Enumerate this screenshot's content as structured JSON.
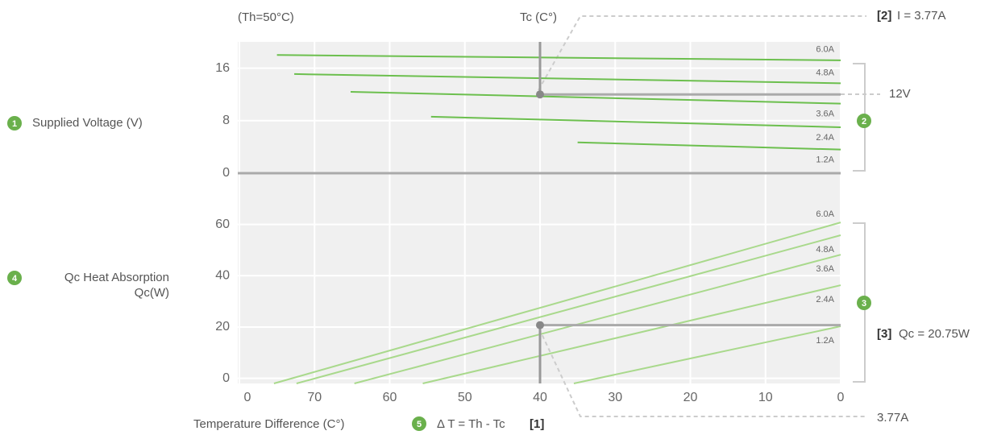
{
  "chart_data": [
    {
      "type": "line",
      "ylabel": "Supplied Voltage (V)",
      "badge": "1",
      "side_badge": "2",
      "xlim": [
        80,
        0
      ],
      "ylim": [
        0,
        20
      ],
      "yticks": [
        0,
        8,
        16
      ],
      "grid": true,
      "color": "#6cbf4e",
      "series": [
        {
          "name": "6.0A",
          "x": [
            75,
            0
          ],
          "values": [
            18.0,
            17.2
          ]
        },
        {
          "name": "4.8A",
          "x": [
            72.7,
            0
          ],
          "values": [
            15.1,
            13.7
          ]
        },
        {
          "name": "3.6A",
          "x": [
            65.2,
            0
          ],
          "values": [
            12.4,
            10.6
          ]
        },
        {
          "name": "2.4A",
          "x": [
            54.5,
            0
          ],
          "values": [
            8.6,
            7.0
          ]
        },
        {
          "name": "1.2A",
          "x": [
            35,
            0
          ],
          "values": [
            4.7,
            3.6
          ]
        }
      ],
      "operating_point": {
        "x": 40,
        "y": 12,
        "label": "12V"
      }
    },
    {
      "type": "line",
      "ylabel": [
        "Qc Heat Absorption",
        "Qc(W)"
      ],
      "badge": "4",
      "side_badge": "3",
      "xlabel": "Temperature Difference (C°)",
      "xlim": [
        80,
        0
      ],
      "xticks": [
        {
          "value": 80,
          "label": "0"
        },
        70,
        60,
        50,
        40,
        30,
        20,
        10,
        0
      ],
      "ylim": [
        -2,
        69
      ],
      "yticks": [
        0,
        20,
        40,
        60
      ],
      "grid": true,
      "color": "#a9d98c",
      "series": [
        {
          "name": "6.0A",
          "x": [
            75.4,
            0
          ],
          "values": [
            -2,
            60.8
          ]
        },
        {
          "name": "4.8A",
          "x": [
            72.4,
            0
          ],
          "values": [
            -2,
            55.8
          ]
        },
        {
          "name": "3.6A",
          "x": [
            64.7,
            0
          ],
          "values": [
            -2,
            48.2
          ]
        },
        {
          "name": "2.4A",
          "x": [
            55.6,
            0
          ],
          "values": [
            -2,
            36.3
          ]
        },
        {
          "name": "1.2A",
          "x": [
            35.5,
            0
          ],
          "values": [
            -2,
            20.3
          ]
        }
      ],
      "operating_point": {
        "x": 40,
        "y": 20.75
      }
    }
  ],
  "annotations": {
    "th": "(Th=50°C)",
    "tc": "Tc (C°)",
    "current_ref": "[2]",
    "current": "I = 3.77A",
    "qc_ref": "[3]",
    "qc": "Qc = 20.75W",
    "current_bottom": "3.77A",
    "delta_badge": "5",
    "delta": "Δ T = Th - Tc",
    "delta_ref": "[1]"
  }
}
